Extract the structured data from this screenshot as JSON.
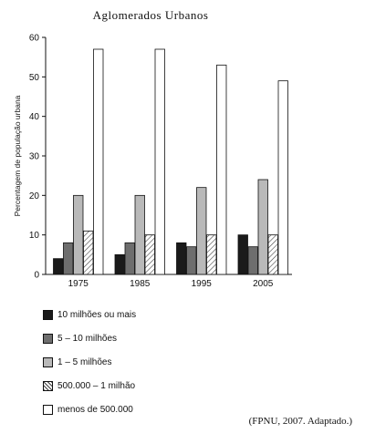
{
  "chart_data": {
    "type": "bar",
    "title": "Aglomerados Urbanos",
    "xlabel": "",
    "ylabel": "Percentagem de população urbana",
    "ylim": [
      0,
      60
    ],
    "yticks": [
      0,
      10,
      20,
      30,
      40,
      50,
      60
    ],
    "categories": [
      "1975",
      "1985",
      "1995",
      "2005"
    ],
    "grid": false,
    "legend_position": "bottom-left",
    "series": [
      {
        "name": "10 milhões ou mais",
        "values": [
          4,
          5,
          8,
          10
        ],
        "color": "#1a1a1a",
        "pattern": "solid"
      },
      {
        "name": "5 – 10 milhões",
        "values": [
          8,
          8,
          7,
          7
        ],
        "color": "#6e6e6e",
        "pattern": "solid"
      },
      {
        "name": "1 – 5 milhões",
        "values": [
          20,
          20,
          22,
          24
        ],
        "color": "#b9b9b9",
        "pattern": "solid"
      },
      {
        "name": "500.000 – 1 milhão",
        "values": [
          11,
          10,
          10,
          10
        ],
        "color": "#ffffff",
        "pattern": "hatch"
      },
      {
        "name": "menos de 500.000",
        "values": [
          57,
          57,
          53,
          49
        ],
        "color": "#ffffff",
        "pattern": "solid"
      }
    ]
  },
  "source": "(FPNU, 2007. Adaptado.)"
}
